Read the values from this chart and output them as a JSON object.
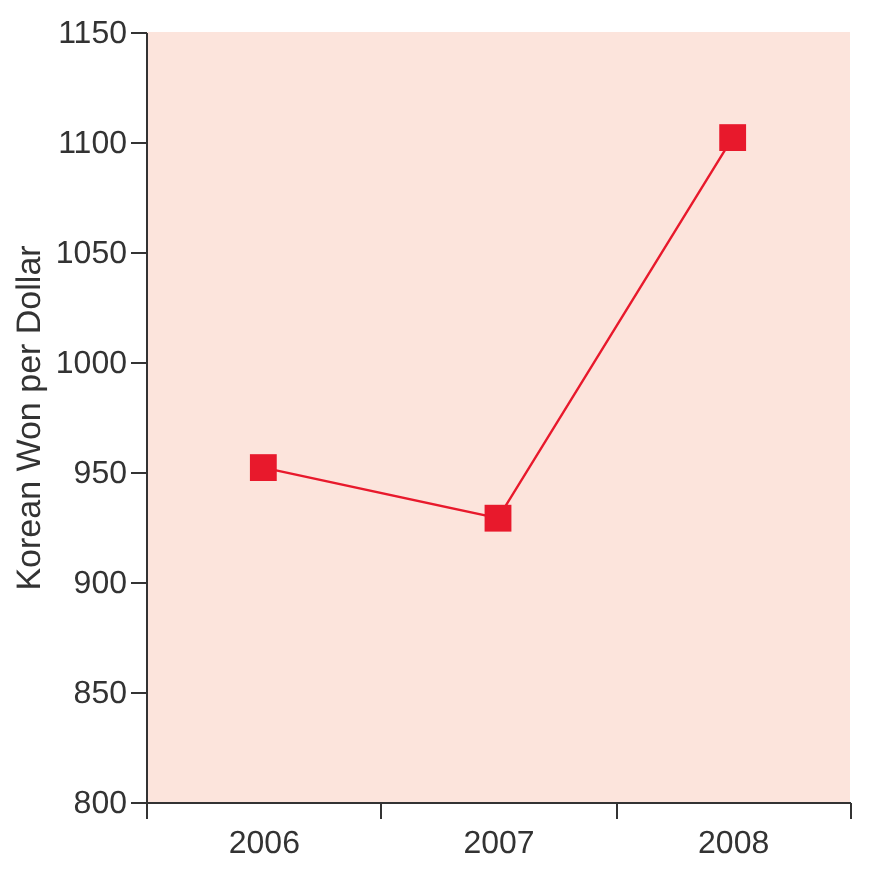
{
  "chart_data": {
    "type": "line",
    "ylabel": "Korean Won per Dollar",
    "categories": [
      "2006",
      "2007",
      "2008"
    ],
    "series": [
      {
        "color": "#e8192c",
        "values": [
          952,
          929,
          1102
        ]
      }
    ],
    "ylim": [
      800,
      1150
    ],
    "yticks": [
      800,
      850,
      900,
      950,
      1000,
      1050,
      1100,
      1150
    ],
    "marker": "square",
    "line_style": "solid",
    "grid": false
  }
}
